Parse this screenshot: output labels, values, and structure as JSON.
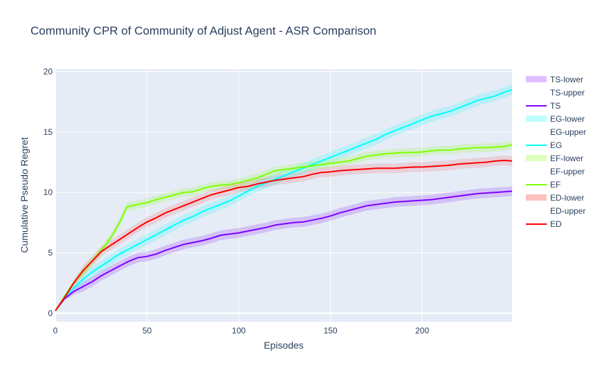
{
  "chart_data": {
    "type": "line",
    "title": "Community CPR of Community of Adjust Agent - ASR Comparison",
    "xlabel": "Episodes",
    "ylabel": "Cumulative Pseudo Regret",
    "xlim": [
      0,
      249
    ],
    "ylim": [
      -0.7,
      20.2
    ],
    "x_ticks": [
      0,
      50,
      100,
      150,
      200
    ],
    "y_ticks": [
      0,
      5,
      10,
      15,
      20
    ],
    "grid": true,
    "legend_position": "right",
    "background": "#e5ecf6",
    "legend": [
      "TS-lower",
      "TS-upper",
      "TS",
      "EG-lower",
      "EG-upper",
      "EG",
      "EF-lower",
      "EF-upper",
      "EF",
      "ED-lower",
      "ED-upper",
      "ED"
    ],
    "series": [
      {
        "name": "TS",
        "color": "#7f00ff",
        "band_color": "rgba(127,0,255,0.18)",
        "band_half_width": 0.4,
        "points": [
          [
            0,
            0.2
          ],
          [
            5,
            1.2
          ],
          [
            10,
            1.8
          ],
          [
            15,
            2.2
          ],
          [
            20,
            2.6
          ],
          [
            25,
            3.1
          ],
          [
            30,
            3.5
          ],
          [
            35,
            3.9
          ],
          [
            40,
            4.3
          ],
          [
            45,
            4.6
          ],
          [
            50,
            4.7
          ],
          [
            55,
            4.9
          ],
          [
            60,
            5.2
          ],
          [
            65,
            5.45
          ],
          [
            70,
            5.7
          ],
          [
            75,
            5.85
          ],
          [
            80,
            6.0
          ],
          [
            85,
            6.2
          ],
          [
            90,
            6.45
          ],
          [
            95,
            6.55
          ],
          [
            100,
            6.65
          ],
          [
            105,
            6.8
          ],
          [
            110,
            6.95
          ],
          [
            115,
            7.1
          ],
          [
            120,
            7.3
          ],
          [
            125,
            7.4
          ],
          [
            130,
            7.5
          ],
          [
            135,
            7.55
          ],
          [
            140,
            7.7
          ],
          [
            145,
            7.85
          ],
          [
            150,
            8.05
          ],
          [
            155,
            8.3
          ],
          [
            160,
            8.5
          ],
          [
            165,
            8.7
          ],
          [
            170,
            8.9
          ],
          [
            175,
            9.0
          ],
          [
            180,
            9.1
          ],
          [
            185,
            9.2
          ],
          [
            190,
            9.25
          ],
          [
            195,
            9.3
          ],
          [
            200,
            9.35
          ],
          [
            205,
            9.4
          ],
          [
            210,
            9.5
          ],
          [
            215,
            9.6
          ],
          [
            220,
            9.7
          ],
          [
            225,
            9.8
          ],
          [
            230,
            9.9
          ],
          [
            235,
            9.95
          ],
          [
            240,
            10.0
          ],
          [
            245,
            10.05
          ],
          [
            249,
            10.1
          ]
        ]
      },
      {
        "name": "EG",
        "color": "#00ffff",
        "band_color": "rgba(0,255,255,0.18)",
        "band_half_width": 0.45,
        "points": [
          [
            0,
            0.2
          ],
          [
            5,
            1.3
          ],
          [
            10,
            2.1
          ],
          [
            15,
            2.8
          ],
          [
            20,
            3.4
          ],
          [
            25,
            3.9
          ],
          [
            30,
            4.4
          ],
          [
            35,
            4.9
          ],
          [
            40,
            5.3
          ],
          [
            45,
            5.7
          ],
          [
            50,
            6.1
          ],
          [
            55,
            6.5
          ],
          [
            60,
            6.9
          ],
          [
            65,
            7.3
          ],
          [
            70,
            7.7
          ],
          [
            75,
            8.0
          ],
          [
            80,
            8.4
          ],
          [
            85,
            8.7
          ],
          [
            90,
            9.0
          ],
          [
            95,
            9.3
          ],
          [
            100,
            9.7
          ],
          [
            105,
            10.1
          ],
          [
            110,
            10.5
          ],
          [
            115,
            10.8
          ],
          [
            120,
            11.1
          ],
          [
            125,
            11.4
          ],
          [
            130,
            11.7
          ],
          [
            135,
            12.0
          ],
          [
            140,
            12.3
          ],
          [
            145,
            12.6
          ],
          [
            150,
            12.9
          ],
          [
            155,
            13.2
          ],
          [
            160,
            13.5
          ],
          [
            165,
            13.8
          ],
          [
            170,
            14.1
          ],
          [
            175,
            14.4
          ],
          [
            180,
            14.8
          ],
          [
            185,
            15.1
          ],
          [
            190,
            15.4
          ],
          [
            195,
            15.7
          ],
          [
            200,
            16.0
          ],
          [
            205,
            16.3
          ],
          [
            210,
            16.5
          ],
          [
            215,
            16.7
          ],
          [
            220,
            17.0
          ],
          [
            225,
            17.3
          ],
          [
            230,
            17.6
          ],
          [
            235,
            17.8
          ],
          [
            240,
            18.0
          ],
          [
            245,
            18.3
          ],
          [
            249,
            18.5
          ]
        ]
      },
      {
        "name": "EF",
        "color": "#7fff00",
        "band_color": "rgba(127,255,0,0.18)",
        "band_half_width": 0.35,
        "points": [
          [
            0,
            0.2
          ],
          [
            5,
            1.4
          ],
          [
            10,
            2.5
          ],
          [
            15,
            3.4
          ],
          [
            20,
            4.3
          ],
          [
            25,
            5.2
          ],
          [
            30,
            6.2
          ],
          [
            35,
            7.5
          ],
          [
            39,
            8.8
          ],
          [
            45,
            9.0
          ],
          [
            50,
            9.15
          ],
          [
            55,
            9.4
          ],
          [
            60,
            9.6
          ],
          [
            65,
            9.8
          ],
          [
            70,
            10.0
          ],
          [
            75,
            10.05
          ],
          [
            80,
            10.3
          ],
          [
            85,
            10.5
          ],
          [
            90,
            10.6
          ],
          [
            95,
            10.65
          ],
          [
            100,
            10.8
          ],
          [
            105,
            11.0
          ],
          [
            110,
            11.2
          ],
          [
            115,
            11.5
          ],
          [
            120,
            11.8
          ],
          [
            125,
            11.9
          ],
          [
            130,
            12.0
          ],
          [
            135,
            12.1
          ],
          [
            140,
            12.2
          ],
          [
            145,
            12.3
          ],
          [
            150,
            12.4
          ],
          [
            155,
            12.5
          ],
          [
            160,
            12.6
          ],
          [
            165,
            12.8
          ],
          [
            170,
            13.0
          ],
          [
            175,
            13.1
          ],
          [
            180,
            13.2
          ],
          [
            185,
            13.25
          ],
          [
            190,
            13.3
          ],
          [
            195,
            13.3
          ],
          [
            200,
            13.35
          ],
          [
            205,
            13.45
          ],
          [
            210,
            13.5
          ],
          [
            215,
            13.5
          ],
          [
            220,
            13.6
          ],
          [
            225,
            13.65
          ],
          [
            230,
            13.7
          ],
          [
            235,
            13.7
          ],
          [
            240,
            13.75
          ],
          [
            245,
            13.8
          ],
          [
            249,
            13.95
          ]
        ]
      },
      {
        "name": "ED",
        "color": "#ff0000",
        "band_color": "rgba(255,0,0,0.12)",
        "band_half_width": 0.4,
        "points": [
          [
            0,
            0.2
          ],
          [
            5,
            1.3
          ],
          [
            10,
            2.5
          ],
          [
            15,
            3.5
          ],
          [
            20,
            4.3
          ],
          [
            25,
            5.1
          ],
          [
            30,
            5.6
          ],
          [
            35,
            6.1
          ],
          [
            40,
            6.6
          ],
          [
            45,
            7.1
          ],
          [
            50,
            7.55
          ],
          [
            55,
            7.9
          ],
          [
            60,
            8.3
          ],
          [
            65,
            8.6
          ],
          [
            70,
            8.9
          ],
          [
            75,
            9.2
          ],
          [
            80,
            9.5
          ],
          [
            85,
            9.8
          ],
          [
            90,
            10.0
          ],
          [
            95,
            10.2
          ],
          [
            100,
            10.4
          ],
          [
            105,
            10.5
          ],
          [
            110,
            10.7
          ],
          [
            115,
            10.85
          ],
          [
            120,
            11.0
          ],
          [
            125,
            11.1
          ],
          [
            130,
            11.2
          ],
          [
            135,
            11.3
          ],
          [
            140,
            11.5
          ],
          [
            145,
            11.65
          ],
          [
            150,
            11.7
          ],
          [
            155,
            11.8
          ],
          [
            160,
            11.85
          ],
          [
            165,
            11.9
          ],
          [
            170,
            11.95
          ],
          [
            175,
            12.0
          ],
          [
            180,
            12.0
          ],
          [
            185,
            12.0
          ],
          [
            190,
            12.05
          ],
          [
            195,
            12.1
          ],
          [
            200,
            12.1
          ],
          [
            205,
            12.15
          ],
          [
            210,
            12.2
          ],
          [
            215,
            12.25
          ],
          [
            220,
            12.35
          ],
          [
            225,
            12.4
          ],
          [
            230,
            12.45
          ],
          [
            235,
            12.5
          ],
          [
            240,
            12.6
          ],
          [
            245,
            12.65
          ],
          [
            249,
            12.6
          ]
        ]
      }
    ]
  }
}
